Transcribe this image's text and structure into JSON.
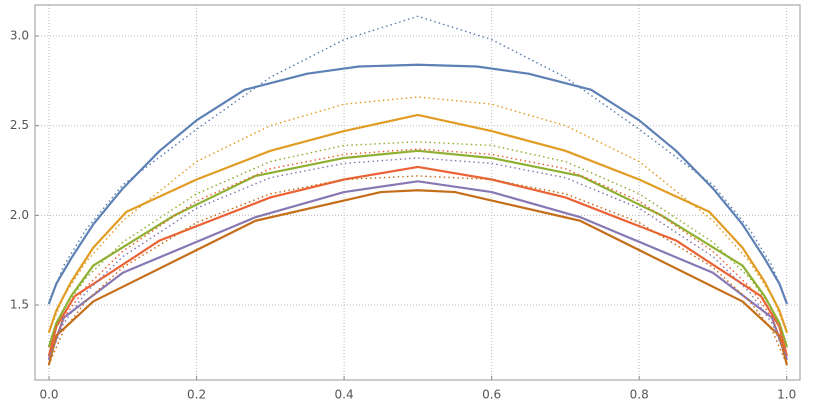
{
  "chart_data": {
    "type": "line",
    "xlim": [
      -0.019,
      1.018
    ],
    "ylim": [
      1.082,
      3.173
    ],
    "xticks": [
      {
        "value": 0,
        "label": "0.0"
      },
      0.2,
      0.4,
      0.6,
      0.8,
      {
        "value": 1,
        "label": "1.0"
      }
    ],
    "yticks": [
      1.5,
      {
        "value": 2,
        "label": "2.0"
      },
      2.5,
      {
        "value": 3,
        "label": "3.0"
      }
    ],
    "grid": true,
    "series": [
      {
        "color": "#5e81b5",
        "style": "solid",
        "x": [
          0,
          0.01,
          0.03,
          0.06,
          0.1,
          0.15,
          0.2,
          0.265,
          0.35,
          0.42,
          0.5,
          0.58,
          0.65,
          0.735,
          0.8,
          0.85,
          0.9,
          0.94,
          0.97,
          0.99,
          1
        ],
        "values": [
          1.51,
          1.62,
          1.76,
          1.95,
          2.15,
          2.36,
          2.53,
          2.7,
          2.79,
          2.83,
          2.84,
          2.83,
          2.79,
          2.7,
          2.53,
          2.36,
          2.15,
          1.95,
          1.76,
          1.62,
          1.51
        ]
      },
      {
        "color": "#e19c24",
        "style": "solid",
        "x": [
          0,
          0.01,
          0.03,
          0.06,
          0.105,
          0.2,
          0.3,
          0.4,
          0.5,
          0.6,
          0.7,
          0.8,
          0.895,
          0.94,
          0.97,
          0.99,
          1
        ],
        "values": [
          1.35,
          1.47,
          1.63,
          1.82,
          2.02,
          2.2,
          2.36,
          2.47,
          2.56,
          2.47,
          2.36,
          2.2,
          2.02,
          1.82,
          1.63,
          1.47,
          1.35
        ]
      },
      {
        "color": "#8fb032",
        "style": "solid",
        "x": [
          0,
          0.01,
          0.03,
          0.06,
          0.17,
          0.28,
          0.4,
          0.5,
          0.6,
          0.72,
          0.83,
          0.94,
          0.97,
          0.99,
          1
        ],
        "values": [
          1.27,
          1.4,
          1.55,
          1.72,
          2.0,
          2.22,
          2.32,
          2.36,
          2.32,
          2.22,
          2.0,
          1.72,
          1.55,
          1.4,
          1.27
        ]
      },
      {
        "color": "#eb6235",
        "style": "solid",
        "x": [
          0,
          0.01,
          0.035,
          0.15,
          0.3,
          0.4,
          0.5,
          0.6,
          0.7,
          0.85,
          0.965,
          0.99,
          1
        ],
        "values": [
          1.22,
          1.38,
          1.55,
          1.86,
          2.1,
          2.2,
          2.27,
          2.2,
          2.1,
          1.86,
          1.55,
          1.38,
          1.22
        ]
      },
      {
        "color": "#8778b3",
        "style": "solid",
        "x": [
          0,
          0.02,
          0.1,
          0.28,
          0.4,
          0.5,
          0.6,
          0.72,
          0.9,
          0.98,
          1
        ],
        "values": [
          1.2,
          1.43,
          1.68,
          1.99,
          2.13,
          2.19,
          2.13,
          1.99,
          1.68,
          1.43,
          1.2
        ]
      },
      {
        "color": "#c56e1a",
        "style": "solid",
        "x": [
          0,
          0.01,
          0.06,
          0.28,
          0.45,
          0.5,
          0.55,
          0.72,
          0.94,
          0.99,
          1
        ],
        "values": [
          1.17,
          1.33,
          1.52,
          1.97,
          2.13,
          2.14,
          2.13,
          1.97,
          1.52,
          1.33,
          1.17
        ]
      },
      {
        "color": "#5e81b5",
        "style": "dotted",
        "x": [
          0,
          0.02,
          0.05,
          0.1,
          0.2,
          0.3,
          0.4,
          0.5,
          0.6,
          0.7,
          0.8,
          0.9,
          0.95,
          0.98,
          1
        ],
        "values": [
          1.51,
          1.72,
          1.92,
          2.17,
          2.48,
          2.77,
          2.98,
          3.11,
          2.98,
          2.77,
          2.48,
          2.17,
          1.92,
          1.72,
          1.51
        ]
      },
      {
        "color": "#e19c24",
        "style": "dotted",
        "x": [
          0,
          0.02,
          0.05,
          0.1,
          0.2,
          0.3,
          0.4,
          0.5,
          0.6,
          0.7,
          0.8,
          0.9,
          0.95,
          0.98,
          1
        ],
        "values": [
          1.35,
          1.55,
          1.74,
          1.97,
          2.3,
          2.5,
          2.62,
          2.66,
          2.62,
          2.5,
          2.3,
          1.97,
          1.74,
          1.55,
          1.35
        ]
      },
      {
        "color": "#8fb032",
        "style": "dotted",
        "x": [
          0,
          0.02,
          0.05,
          0.1,
          0.2,
          0.3,
          0.4,
          0.5,
          0.6,
          0.7,
          0.8,
          0.9,
          0.95,
          0.98,
          1
        ],
        "values": [
          1.27,
          1.48,
          1.65,
          1.85,
          2.12,
          2.3,
          2.39,
          2.41,
          2.39,
          2.3,
          2.12,
          1.85,
          1.65,
          1.48,
          1.27
        ]
      },
      {
        "color": "#eb6235",
        "style": "dotted",
        "x": [
          0,
          0.02,
          0.05,
          0.1,
          0.2,
          0.3,
          0.4,
          0.5,
          0.6,
          0.7,
          0.8,
          0.9,
          0.95,
          0.98,
          1
        ],
        "values": [
          1.22,
          1.43,
          1.6,
          1.8,
          2.08,
          2.26,
          2.34,
          2.37,
          2.34,
          2.26,
          2.08,
          1.8,
          1.6,
          1.43,
          1.22
        ]
      },
      {
        "color": "#8778b3",
        "style": "dotted",
        "x": [
          0,
          0.02,
          0.05,
          0.1,
          0.2,
          0.3,
          0.4,
          0.5,
          0.6,
          0.7,
          0.8,
          0.9,
          0.95,
          0.98,
          1
        ],
        "values": [
          1.2,
          1.4,
          1.57,
          1.77,
          2.04,
          2.21,
          2.29,
          2.32,
          2.29,
          2.21,
          2.04,
          1.77,
          1.57,
          1.4,
          1.2
        ]
      },
      {
        "color": "#c56e1a",
        "style": "dotted",
        "x": [
          0,
          0.02,
          0.05,
          0.1,
          0.2,
          0.3,
          0.4,
          0.5,
          0.6,
          0.7,
          0.8,
          0.9,
          0.95,
          0.98,
          1
        ],
        "values": [
          1.17,
          1.36,
          1.52,
          1.71,
          1.96,
          2.12,
          2.2,
          2.22,
          2.2,
          2.12,
          1.96,
          1.71,
          1.52,
          1.36,
          1.17
        ]
      }
    ]
  }
}
